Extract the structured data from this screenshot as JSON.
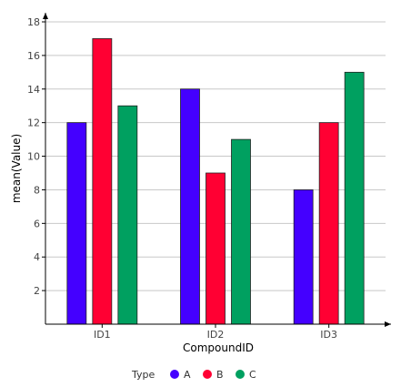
{
  "chart_data": {
    "type": "bar",
    "title": "",
    "xlabel": "CompoundID",
    "ylabel": "mean(Value)",
    "categories": [
      "ID1",
      "ID2",
      "ID3"
    ],
    "series": [
      {
        "name": "A",
        "values": [
          12,
          14,
          8
        ],
        "color": "#4400ff"
      },
      {
        "name": "B",
        "values": [
          17,
          9,
          12
        ],
        "color": "#ff0033"
      },
      {
        "name": "C",
        "values": [
          13,
          11,
          15
        ],
        "color": "#00a060"
      }
    ],
    "ylim": [
      0,
      18
    ],
    "yticks": [
      2,
      4,
      6,
      8,
      10,
      12,
      14,
      16,
      18
    ],
    "grid": true,
    "legend": {
      "title": "Type",
      "placement": "bottom-center"
    }
  }
}
